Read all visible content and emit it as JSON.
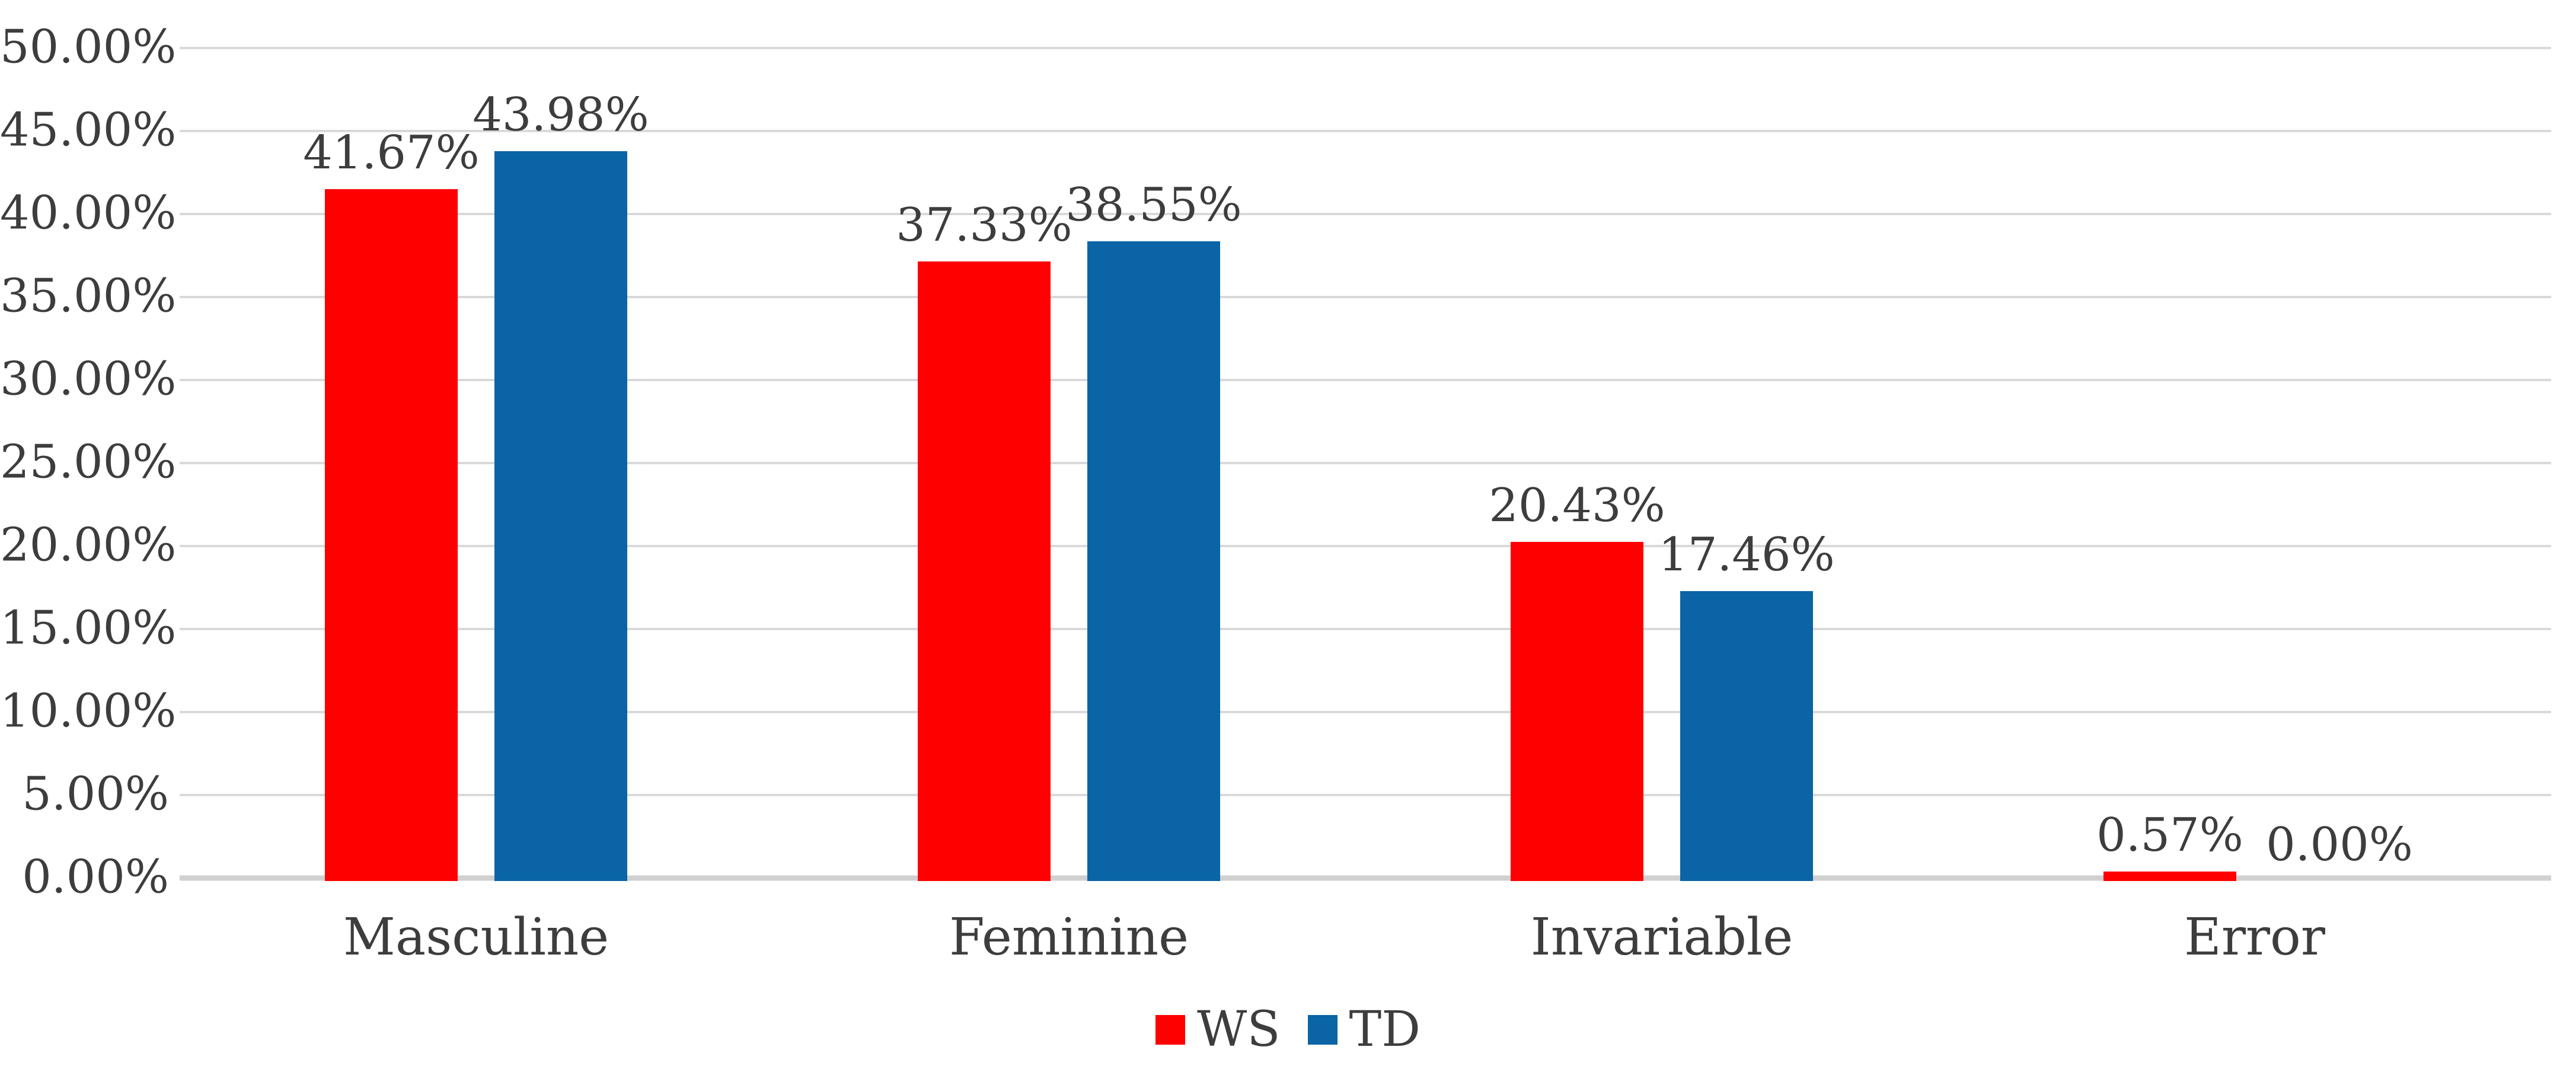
{
  "chart_data": {
    "type": "bar",
    "categories": [
      "Masculine",
      "Feminine",
      "Invariable",
      "Error"
    ],
    "series": [
      {
        "name": "WS",
        "color": "#FF0000",
        "values": [
          41.67,
          37.33,
          20.43,
          0.57
        ],
        "value_labels": [
          "41.67%",
          "37.33%",
          "20.43%",
          "0.57%"
        ]
      },
      {
        "name": "TD",
        "color": "#0A64A5",
        "values": [
          43.98,
          38.55,
          17.46,
          0.0
        ],
        "value_labels": [
          "43.98%",
          "38.55%",
          "17.46%",
          "0.00%"
        ]
      }
    ],
    "title": "",
    "xlabel": "",
    "ylabel": "",
    "y_axis": {
      "min": 0,
      "max": 50,
      "step": 5,
      "tick_labels": [
        "0.00%",
        "5.00%",
        "10.00%",
        "15.00%",
        "20.00%",
        "25.00%",
        "30.00%",
        "35.00%",
        "40.00%",
        "45.00%",
        "50.00%"
      ]
    },
    "grid": true,
    "data_labels": true,
    "legend_position": "bottom"
  },
  "colors": {
    "gridline": "#D9D9D9",
    "axis_line": "#D0D0D0",
    "text": "#3D3D3D"
  }
}
